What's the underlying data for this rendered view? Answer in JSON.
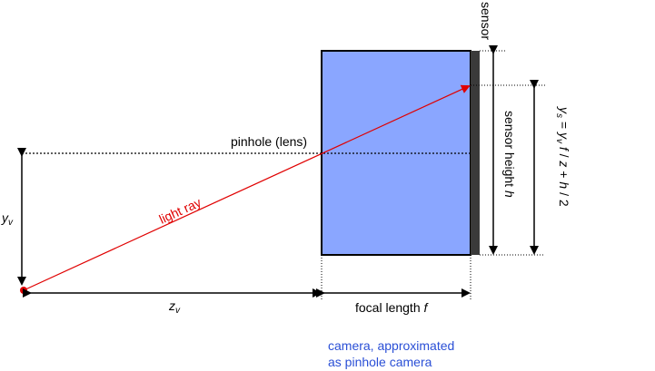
{
  "labels": {
    "sensor": "sensor",
    "pinhole": "pinhole (lens)",
    "light_ray": "light ray",
    "sensor_height": "sensor height ",
    "sensor_height_var": "h",
    "yv_base": "y",
    "yv_sub": "v",
    "zv_base": "z",
    "zv_sub": "v",
    "focal_length": "focal length ",
    "focal_length_var": "f",
    "ys_base": "y",
    "ys_sub": "s",
    "ys_eq": " = ",
    "ys_y": "y",
    "ys_v": "v",
    "ys_f": " f",
    "ys_div": " / ",
    "ys_z": "z",
    "ys_plus": " + ",
    "ys_h": "h",
    "ys_two": " / 2",
    "camera_line1": "camera, approximated",
    "camera_line2": "as pinhole camera"
  },
  "colors": {
    "camera_fill": "#8aa6ff",
    "sensor_fill": "#3a3a3a",
    "ray": "#e00000",
    "caption": "#2a4fd6",
    "line": "#000000"
  }
}
